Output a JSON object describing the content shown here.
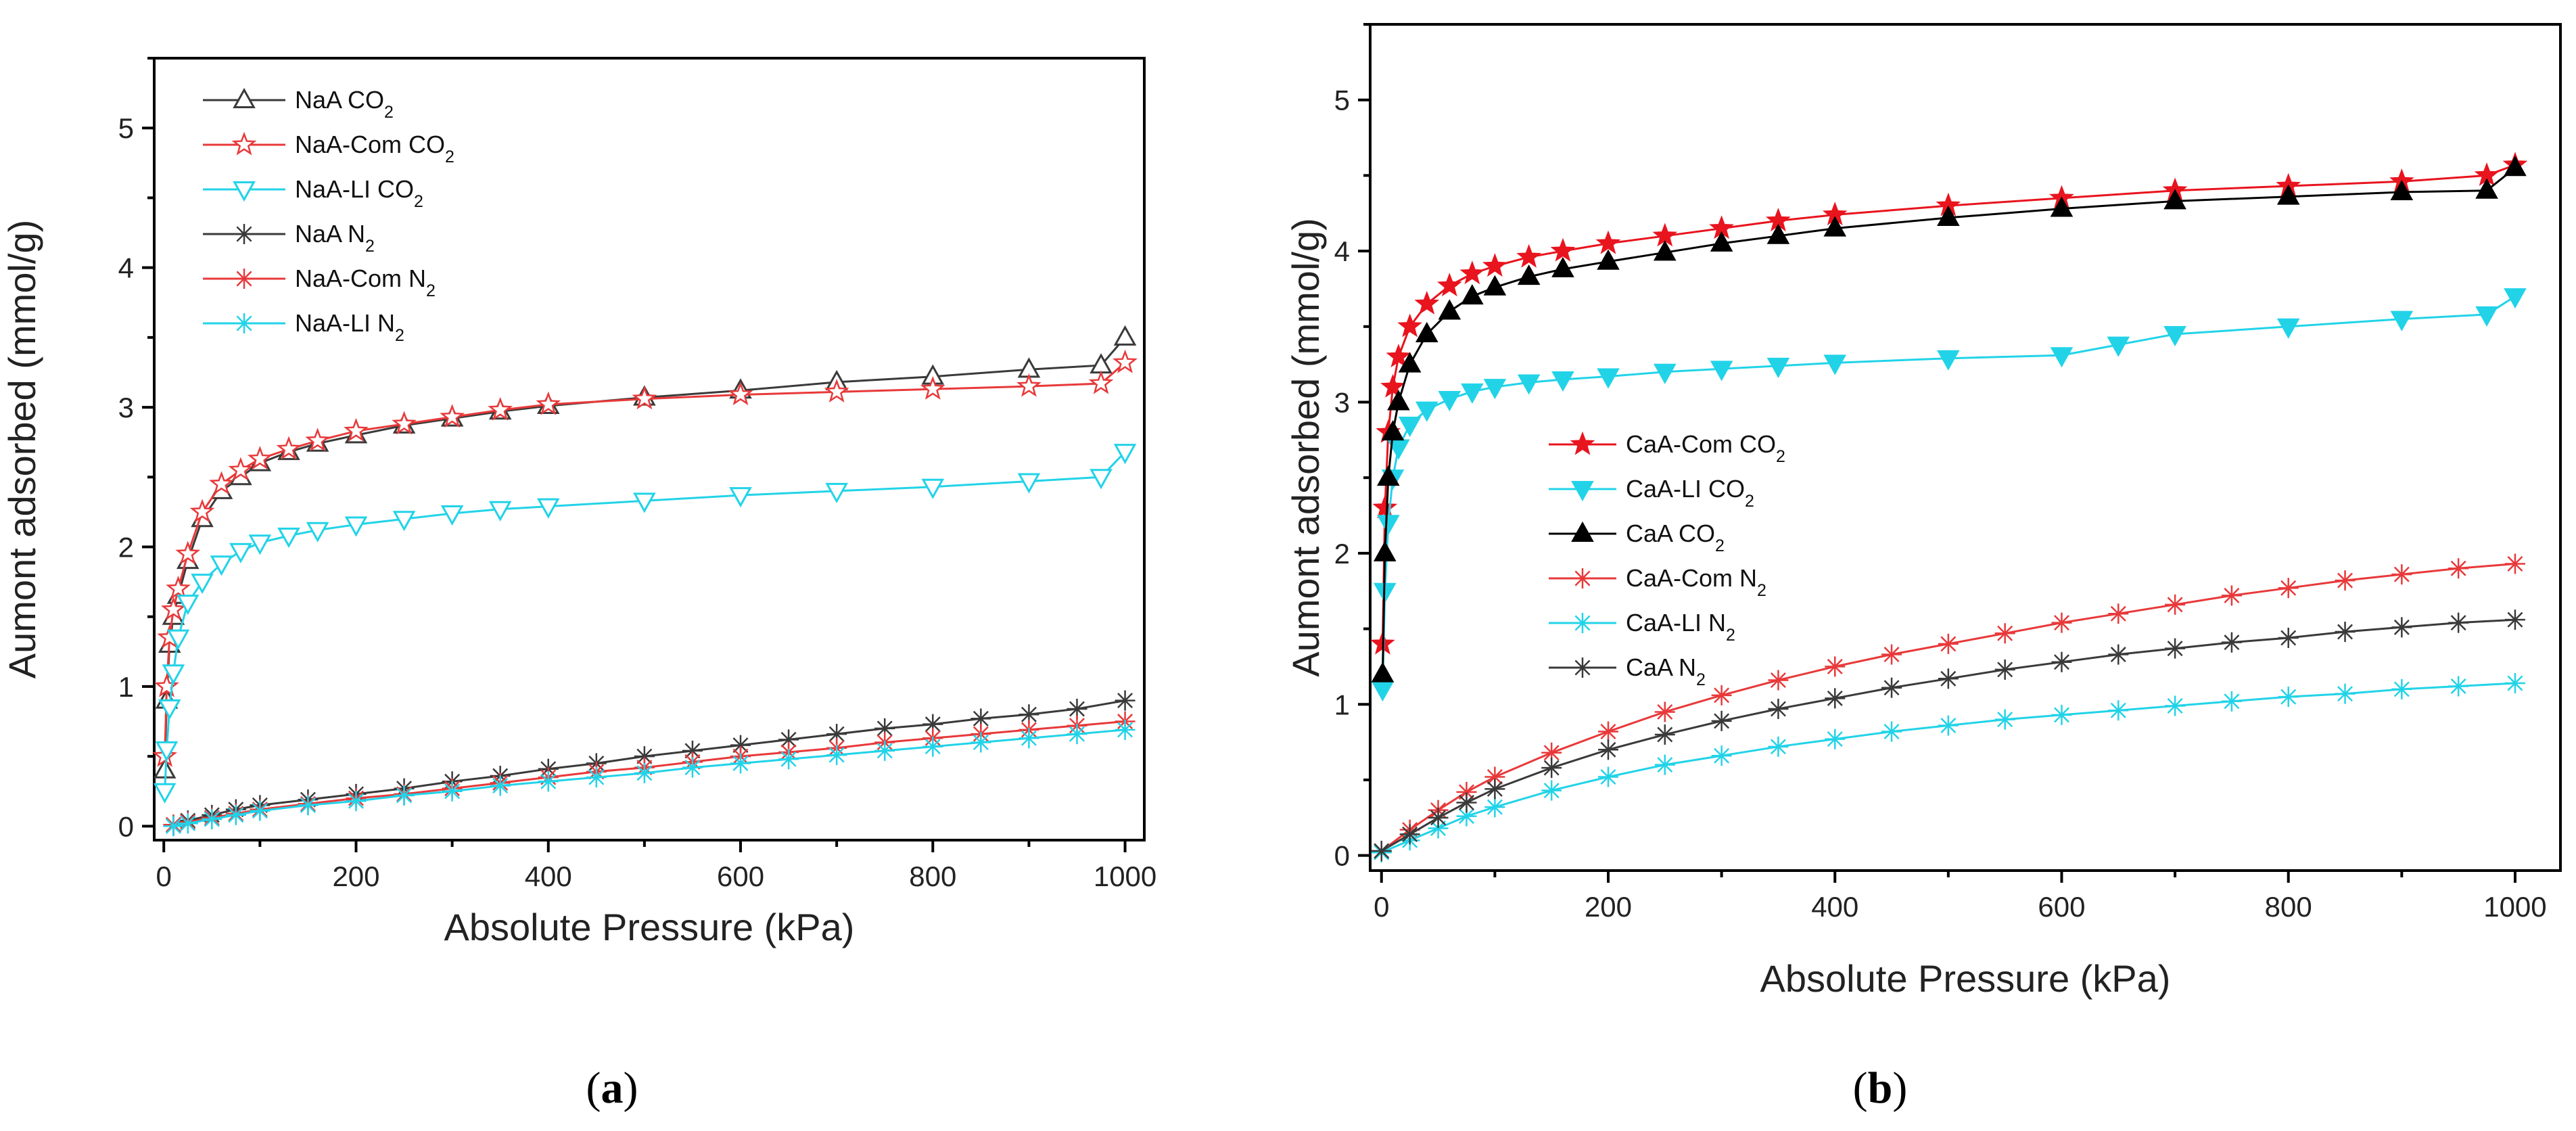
{
  "chart_data": [
    {
      "panel": "a",
      "type": "scatter",
      "panel_label": {
        "open": "(",
        "letter": "a",
        "close": ")"
      },
      "xlabel": "Absolute Pressure (kPa)",
      "ylabel": "Aumont adsorbed (mmol/g)",
      "xlim": [
        -10,
        1020
      ],
      "ylim": [
        -0.1,
        5.5
      ],
      "xticks": [
        0,
        200,
        400,
        600,
        800,
        1000
      ],
      "yticks": [
        0,
        1,
        2,
        3,
        4,
        5
      ],
      "legend_position": "top-left",
      "series": [
        {
          "name": "NaA CO",
          "sub": "2",
          "color": "#3a3a3a",
          "marker": "triangle-up-open",
          "x": [
            1,
            3,
            6,
            10,
            15,
            25,
            40,
            60,
            80,
            100,
            130,
            160,
            200,
            250,
            300,
            350,
            400,
            500,
            600,
            700,
            800,
            900,
            975,
            1000
          ],
          "values": [
            0.4,
            0.9,
            1.3,
            1.5,
            1.65,
            1.9,
            2.2,
            2.4,
            2.5,
            2.6,
            2.68,
            2.74,
            2.8,
            2.87,
            2.92,
            2.97,
            3.01,
            3.07,
            3.12,
            3.18,
            3.22,
            3.27,
            3.3,
            3.5
          ]
        },
        {
          "name": "NaA-Com CO",
          "sub": "2",
          "color": "#e8393a",
          "marker": "star-open",
          "x": [
            1,
            3,
            6,
            10,
            15,
            25,
            40,
            60,
            80,
            100,
            130,
            160,
            200,
            250,
            300,
            350,
            400,
            500,
            600,
            700,
            800,
            900,
            975,
            1000
          ],
          "values": [
            0.5,
            1.0,
            1.35,
            1.55,
            1.7,
            1.95,
            2.25,
            2.45,
            2.55,
            2.63,
            2.7,
            2.76,
            2.83,
            2.88,
            2.93,
            2.98,
            3.02,
            3.06,
            3.09,
            3.11,
            3.13,
            3.15,
            3.17,
            3.32
          ]
        },
        {
          "name": "NaA-LI CO",
          "sub": "2",
          "color": "#22d3e8",
          "marker": "triangle-down-open",
          "x": [
            1,
            3,
            6,
            10,
            15,
            25,
            40,
            60,
            80,
            100,
            130,
            160,
            200,
            250,
            300,
            350,
            400,
            500,
            600,
            700,
            800,
            900,
            975,
            1000
          ],
          "values": [
            0.25,
            0.55,
            0.85,
            1.1,
            1.35,
            1.6,
            1.75,
            1.88,
            1.97,
            2.03,
            2.08,
            2.12,
            2.16,
            2.2,
            2.24,
            2.27,
            2.29,
            2.33,
            2.37,
            2.4,
            2.43,
            2.47,
            2.5,
            2.68
          ]
        },
        {
          "name": "NaA N",
          "sub": "2",
          "color": "#3a3a3a",
          "marker": "asterisk",
          "x": [
            10,
            25,
            50,
            75,
            100,
            150,
            200,
            250,
            300,
            350,
            400,
            450,
            500,
            550,
            600,
            650,
            700,
            750,
            800,
            850,
            900,
            950,
            1000
          ],
          "values": [
            0.01,
            0.04,
            0.08,
            0.12,
            0.15,
            0.19,
            0.23,
            0.27,
            0.32,
            0.36,
            0.41,
            0.45,
            0.5,
            0.54,
            0.58,
            0.62,
            0.66,
            0.7,
            0.73,
            0.77,
            0.8,
            0.84,
            0.9
          ]
        },
        {
          "name": "NaA-Com N",
          "sub": "2",
          "color": "#e8393a",
          "marker": "asterisk",
          "x": [
            10,
            25,
            50,
            75,
            100,
            150,
            200,
            250,
            300,
            350,
            400,
            450,
            500,
            550,
            600,
            650,
            700,
            750,
            800,
            850,
            900,
            950,
            1000
          ],
          "values": [
            0.01,
            0.03,
            0.06,
            0.09,
            0.12,
            0.16,
            0.2,
            0.23,
            0.27,
            0.31,
            0.35,
            0.39,
            0.42,
            0.46,
            0.5,
            0.53,
            0.56,
            0.6,
            0.63,
            0.66,
            0.69,
            0.72,
            0.75
          ]
        },
        {
          "name": "NaA-LI N",
          "sub": "2",
          "color": "#22d3e8",
          "marker": "asterisk",
          "x": [
            10,
            25,
            50,
            75,
            100,
            150,
            200,
            250,
            300,
            350,
            400,
            450,
            500,
            550,
            600,
            650,
            700,
            750,
            800,
            850,
            900,
            950,
            1000
          ],
          "values": [
            0.0,
            0.02,
            0.05,
            0.08,
            0.11,
            0.15,
            0.18,
            0.22,
            0.25,
            0.29,
            0.32,
            0.35,
            0.38,
            0.42,
            0.45,
            0.48,
            0.51,
            0.54,
            0.57,
            0.6,
            0.63,
            0.66,
            0.69
          ]
        }
      ]
    },
    {
      "panel": "b",
      "type": "scatter",
      "panel_label": {
        "open": "(",
        "letter": "b",
        "close": ")"
      },
      "xlabel": "Absolute Pressure (kPa)",
      "ylabel": "Aumont adsorbed (mmol/g)",
      "xlim": [
        -10,
        1040
      ],
      "ylim": [
        -0.1,
        5.5
      ],
      "xticks": [
        0,
        200,
        400,
        600,
        800,
        1000
      ],
      "yticks": [
        0,
        1,
        2,
        3,
        4,
        5
      ],
      "legend_position": "center-left",
      "series": [
        {
          "name": "CaA-Com CO",
          "sub": "2",
          "color": "#e8141e",
          "marker": "star-filled",
          "x": [
            1,
            3,
            6,
            10,
            15,
            25,
            40,
            60,
            80,
            100,
            130,
            160,
            200,
            250,
            300,
            350,
            400,
            500,
            600,
            700,
            800,
            900,
            975,
            1000
          ],
          "values": [
            1.4,
            2.3,
            2.8,
            3.1,
            3.3,
            3.5,
            3.65,
            3.77,
            3.85,
            3.9,
            3.96,
            4.0,
            4.05,
            4.1,
            4.15,
            4.2,
            4.24,
            4.3,
            4.35,
            4.4,
            4.43,
            4.46,
            4.5,
            4.57
          ]
        },
        {
          "name": "CaA-LI CO",
          "sub": "2",
          "color": "#22d3e8",
          "marker": "triangle-down-filled",
          "x": [
            1,
            3,
            6,
            10,
            15,
            25,
            40,
            60,
            80,
            100,
            130,
            160,
            200,
            250,
            300,
            350,
            400,
            500,
            600,
            650,
            700,
            800,
            900,
            975,
            1000
          ],
          "values": [
            1.1,
            1.75,
            2.2,
            2.5,
            2.7,
            2.85,
            2.95,
            3.02,
            3.07,
            3.1,
            3.13,
            3.15,
            3.17,
            3.2,
            3.22,
            3.24,
            3.26,
            3.29,
            3.31,
            3.38,
            3.45,
            3.5,
            3.55,
            3.58,
            3.7
          ]
        },
        {
          "name": "CaA CO",
          "sub": "2",
          "color": "#000000",
          "marker": "triangle-up-filled",
          "x": [
            1,
            3,
            6,
            10,
            15,
            25,
            40,
            60,
            80,
            100,
            130,
            160,
            200,
            250,
            300,
            350,
            400,
            500,
            600,
            700,
            800,
            900,
            975,
            1000
          ],
          "values": [
            1.2,
            2.0,
            2.5,
            2.8,
            3.0,
            3.25,
            3.45,
            3.6,
            3.7,
            3.76,
            3.83,
            3.88,
            3.93,
            3.99,
            4.05,
            4.1,
            4.15,
            4.22,
            4.28,
            4.33,
            4.36,
            4.39,
            4.4,
            4.55
          ]
        },
        {
          "name": "CaA-Com N",
          "sub": "2",
          "color": "#e8393a",
          "marker": "asterisk",
          "x": [
            0,
            25,
            50,
            75,
            100,
            150,
            200,
            250,
            300,
            350,
            400,
            450,
            500,
            550,
            600,
            650,
            700,
            750,
            800,
            850,
            900,
            950,
            1000
          ],
          "values": [
            0.03,
            0.17,
            0.3,
            0.42,
            0.52,
            0.68,
            0.82,
            0.95,
            1.06,
            1.16,
            1.25,
            1.33,
            1.4,
            1.47,
            1.54,
            1.6,
            1.66,
            1.72,
            1.77,
            1.82,
            1.86,
            1.9,
            1.93
          ]
        },
        {
          "name": "CaA-LI N",
          "sub": "2",
          "color": "#22d3e8",
          "marker": "asterisk",
          "x": [
            0,
            25,
            50,
            75,
            100,
            150,
            200,
            250,
            300,
            350,
            400,
            450,
            500,
            550,
            600,
            650,
            700,
            750,
            800,
            850,
            900,
            950,
            1000
          ],
          "values": [
            0.02,
            0.1,
            0.18,
            0.26,
            0.32,
            0.43,
            0.52,
            0.6,
            0.66,
            0.72,
            0.77,
            0.82,
            0.86,
            0.9,
            0.93,
            0.96,
            0.99,
            1.02,
            1.05,
            1.07,
            1.1,
            1.12,
            1.14
          ]
        },
        {
          "name": "CaA N",
          "sub": "2",
          "color": "#3a3a3a",
          "marker": "asterisk",
          "x": [
            0,
            25,
            50,
            75,
            100,
            150,
            200,
            250,
            300,
            350,
            400,
            450,
            500,
            550,
            600,
            650,
            700,
            750,
            800,
            850,
            900,
            950,
            1000
          ],
          "values": [
            0.03,
            0.14,
            0.25,
            0.35,
            0.44,
            0.58,
            0.7,
            0.8,
            0.89,
            0.97,
            1.04,
            1.11,
            1.17,
            1.23,
            1.28,
            1.33,
            1.37,
            1.41,
            1.44,
            1.48,
            1.51,
            1.54,
            1.56
          ]
        }
      ]
    }
  ]
}
